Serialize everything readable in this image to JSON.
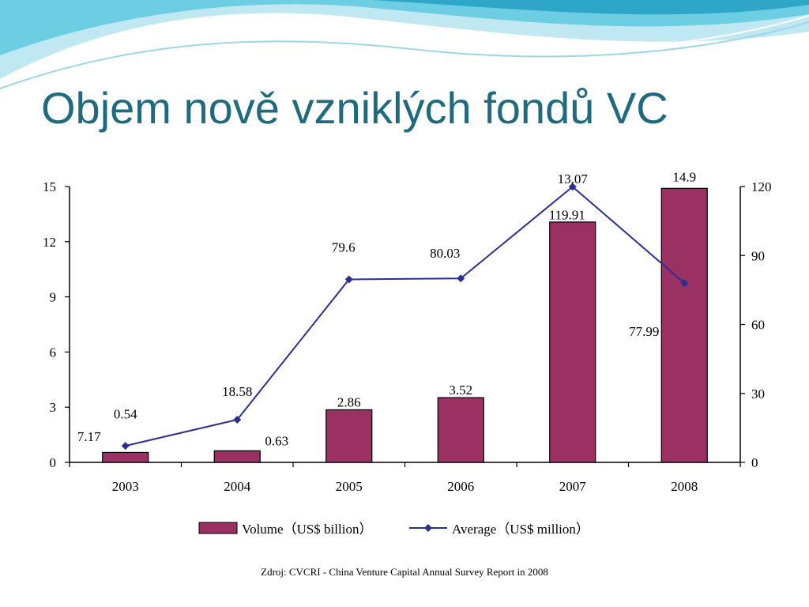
{
  "title": "Objem nově vzniklých fondů VC",
  "caption": "Zdroj: CVCRI - China Venture Capital Annual Survey Report in 2008",
  "chart_data": {
    "type": "bar",
    "categories": [
      "2003",
      "2004",
      "2005",
      "2006",
      "2007",
      "2008"
    ],
    "series": [
      {
        "name": "Volume（US$ billion）",
        "type": "bar",
        "axis": "left",
        "values": [
          0.54,
          0.63,
          2.86,
          3.52,
          13.07,
          14.9
        ],
        "labels": [
          "0.54",
          "0.63",
          "2.86",
          "3.52",
          "13.07",
          "14.9"
        ]
      },
      {
        "name": "Average（US$ million）",
        "type": "line",
        "axis": "right",
        "values": [
          7.17,
          18.58,
          79.6,
          80.03,
          119.91,
          77.99
        ],
        "labels": [
          "7.17",
          "18.58",
          "79.6",
          "80.03",
          "119.91",
          "77.99"
        ]
      }
    ],
    "yleft": {
      "lim": [
        0,
        15
      ],
      "ticks": [
        "0",
        "3",
        "6",
        "9",
        "12",
        "15"
      ]
    },
    "yright": {
      "lim": [
        0,
        120
      ],
      "ticks": [
        "0",
        "30",
        "60",
        "90",
        "120"
      ]
    },
    "legend": "bottom",
    "grid": false,
    "colors": {
      "bar": "#9b3163",
      "line": "#2b2f8f"
    }
  }
}
